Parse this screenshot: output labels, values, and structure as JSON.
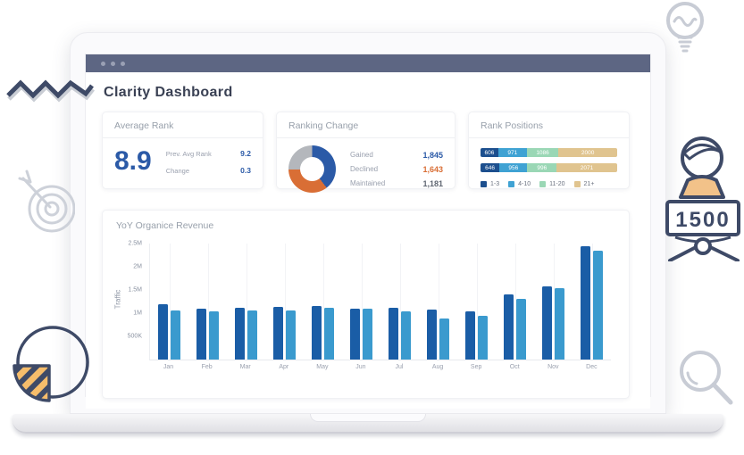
{
  "dashboard": {
    "title": "Clarity Dashboard"
  },
  "cards": {
    "average_rank": {
      "title": "Average Rank",
      "value": "8.9",
      "rows": [
        {
          "label": "Prev. Avg Rank",
          "value": "9.2"
        },
        {
          "label": "Change",
          "value": "0.3"
        }
      ]
    },
    "ranking_change": {
      "title": "Ranking Change"
    },
    "rank_positions": {
      "title": "Rank Positions"
    },
    "yoy_revenue": {
      "title": "YoY Organice Revenue"
    }
  },
  "decorations": {
    "sign_value": "1500"
  },
  "colors": {
    "accent_blue": "#2b5aa7",
    "accent_orange": "#d96e35",
    "titlebar": "#5d6683"
  },
  "chart_data": [
    {
      "id": "ranking-change-donut",
      "type": "pie",
      "donut": true,
      "title": "Ranking Change",
      "labels": [
        "Gained",
        "Declined",
        "Maintained"
      ],
      "values": [
        1845,
        1643,
        1181
      ],
      "display_values": [
        "1,845",
        "1,643",
        "1,181"
      ],
      "slice_colors": [
        "#2b5aa7",
        "#d96e35",
        "#b4b7bc"
      ],
      "value_text_colors": [
        "#2b5aa7",
        "#d96e35",
        "#5f6672"
      ],
      "legend_position": "right"
    },
    {
      "id": "rank-positions-stacked",
      "type": "bar",
      "variant": "horizontal-stacked",
      "title": "Rank Positions",
      "categories": [
        "",
        ""
      ],
      "series": [
        {
          "name": "1-3",
          "color": "#1c4f8e",
          "values": [
            606,
            646
          ]
        },
        {
          "name": "4-10",
          "color": "#3fa2d3",
          "values": [
            971,
            956
          ]
        },
        {
          "name": "11-20",
          "color": "#9ad7b5",
          "values": [
            1086,
            996
          ]
        },
        {
          "name": "21+",
          "color": "#e0c48f",
          "values": [
            2000,
            2071
          ]
        }
      ],
      "legend_position": "bottom"
    },
    {
      "id": "yoy-organice-revenue",
      "type": "bar",
      "title": "YoY Organice Revenue",
      "categories": [
        "Jan",
        "Feb",
        "Mar",
        "Apr",
        "May",
        "Jun",
        "Jul",
        "Aug",
        "Sep",
        "Oct",
        "Nov",
        "Dec"
      ],
      "series": [
        {
          "name": "series-1",
          "color": "#1a5da6",
          "values": [
            1.2,
            1.1,
            1.12,
            1.13,
            1.16,
            1.1,
            1.11,
            1.08,
            1.03,
            1.4,
            1.57,
            2.45
          ]
        },
        {
          "name": "series-2",
          "color": "#3a9ace",
          "values": [
            1.05,
            1.04,
            1.06,
            1.06,
            1.11,
            1.09,
            1.03,
            0.88,
            0.94,
            1.3,
            1.53,
            2.35
          ]
        }
      ],
      "xlabel": "",
      "ylabel": "Traffic",
      "unit": "M",
      "ylim": [
        0,
        2.5
      ],
      "y_ticks": [
        {
          "value": 0.5,
          "label": "500K"
        },
        {
          "value": 1.0,
          "label": "1M"
        },
        {
          "value": 1.5,
          "label": "1.5M"
        },
        {
          "value": 2.0,
          "label": "2M"
        },
        {
          "value": 2.5,
          "label": "2.5M"
        }
      ],
      "grid": "faint-vertical",
      "legend": "none"
    }
  ]
}
